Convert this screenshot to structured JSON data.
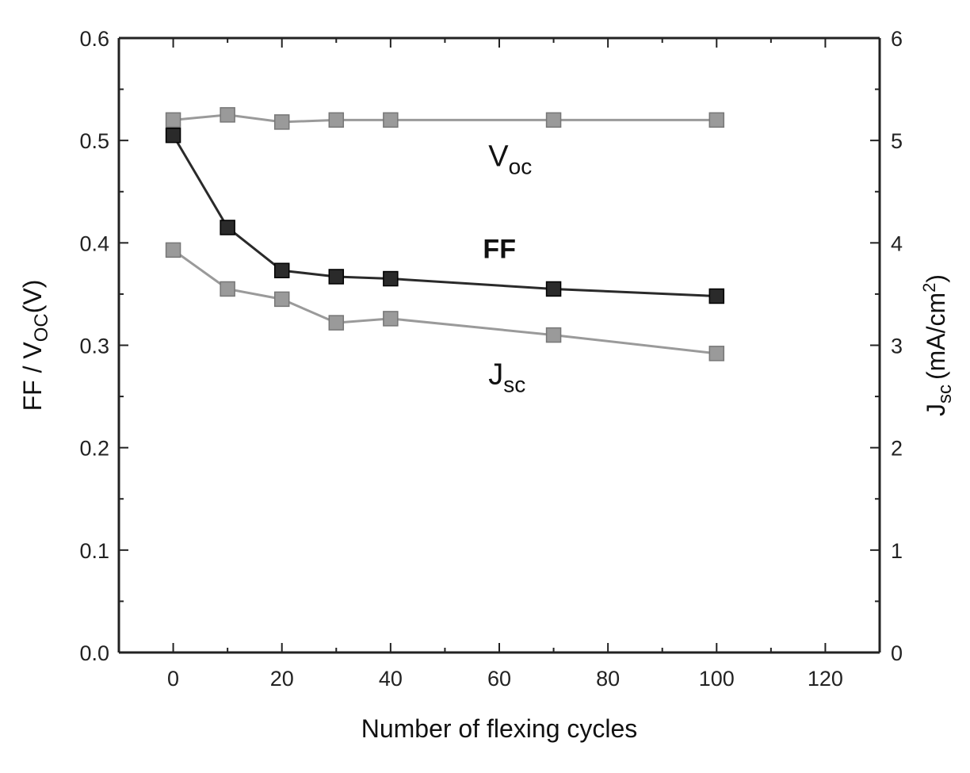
{
  "chart_data": {
    "type": "line",
    "xlabel": "Number of flexing cycles",
    "ylabel_left": "FF / V",
    "ylabel_left_sub": "OC",
    "ylabel_left_unit": "(V)",
    "ylabel_right": "J",
    "ylabel_right_sub": "sc",
    "ylabel_right_unit": "(mA/cm",
    "ylabel_right_sup": "2",
    "ylabel_right_close": ")",
    "xlim": [
      -10,
      130
    ],
    "ylim_left": [
      0,
      0.6
    ],
    "ylim_right": [
      0,
      6
    ],
    "x_ticks": [
      0,
      20,
      40,
      60,
      80,
      100,
      120
    ],
    "x_tick_labels": [
      "0",
      "20",
      "40",
      "60",
      "80",
      "100",
      "120"
    ],
    "y_left_ticks": [
      0.0,
      0.1,
      0.2,
      0.3,
      0.4,
      0.5,
      0.6
    ],
    "y_left_tick_labels": [
      "0.0",
      "0.1",
      "0.2",
      "0.3",
      "0.4",
      "0.5",
      "0.6"
    ],
    "y_right_ticks": [
      0,
      1,
      2,
      3,
      4,
      5,
      6
    ],
    "y_right_tick_labels": [
      "0",
      "1",
      "2",
      "3",
      "4",
      "5",
      "6"
    ],
    "x": [
      0,
      10,
      20,
      30,
      40,
      70,
      100
    ],
    "series": [
      {
        "name": "V",
        "name_sub": "oc",
        "axis": "left",
        "color": "#9a9a9a",
        "values": [
          0.52,
          0.525,
          0.518,
          0.52,
          0.52,
          0.52,
          0.52
        ]
      },
      {
        "name": "FF",
        "axis": "left",
        "color": "#2a2a2a",
        "values": [
          0.505,
          0.415,
          0.373,
          0.367,
          0.365,
          0.355,
          0.348
        ]
      },
      {
        "name": "J",
        "name_sub": "sc",
        "axis": "right",
        "color": "#9a9a9a",
        "values": [
          3.93,
          3.55,
          3.45,
          3.22,
          3.26,
          3.1,
          2.92
        ]
      }
    ],
    "grid": false,
    "legend": "inline labels"
  }
}
